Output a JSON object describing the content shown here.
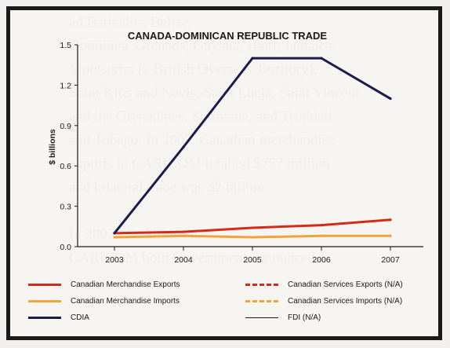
{
  "chart_data": {
    "type": "line",
    "title": "CANADA-DOMINICAN REPUBLIC TRADE",
    "xlabel": "",
    "ylabel": "$ billions",
    "categories": [
      "2003",
      "2004",
      "2005",
      "2006",
      "2007"
    ],
    "y_ticks": [
      "0.0",
      "0.3",
      "0.6",
      "0.9",
      "1.2",
      "1.5"
    ],
    "ylim": [
      0,
      1.5
    ],
    "grid": false,
    "series": [
      {
        "name": "Canadian Merchandise Exports",
        "color": "#d42a1c",
        "style": "solid",
        "values": [
          0.1,
          0.11,
          0.14,
          0.16,
          0.2
        ]
      },
      {
        "name": "Canadian Merchandise Imports",
        "color": "#f0a23b",
        "style": "solid",
        "values": [
          0.07,
          0.08,
          0.07,
          0.08,
          0.08
        ]
      },
      {
        "name": "CDIA",
        "color": "#1e1a4a",
        "style": "solid",
        "values": [
          0.1,
          0.74,
          1.4,
          1.4,
          1.1
        ]
      }
    ],
    "legend": [
      {
        "label": "Canadian Merchandise Exports",
        "color": "#d42a1c",
        "style": "solid"
      },
      {
        "label": "Canadian Services Exports (N/A)",
        "color": "#d42a1c",
        "style": "dashed"
      },
      {
        "label": "Canadian Merchandise Imports",
        "color": "#f0a23b",
        "style": "solid"
      },
      {
        "label": "Canadian Services Imports (N/A)",
        "color": "#f0a23b",
        "style": "dashed"
      },
      {
        "label": "CDIA",
        "color": "#1e1a4a",
        "style": "solid"
      },
      {
        "label": "FDI (N/A)",
        "color": "#1b1a1b",
        "style": "thin"
      }
    ],
    "legend_position": "bottom"
  }
}
